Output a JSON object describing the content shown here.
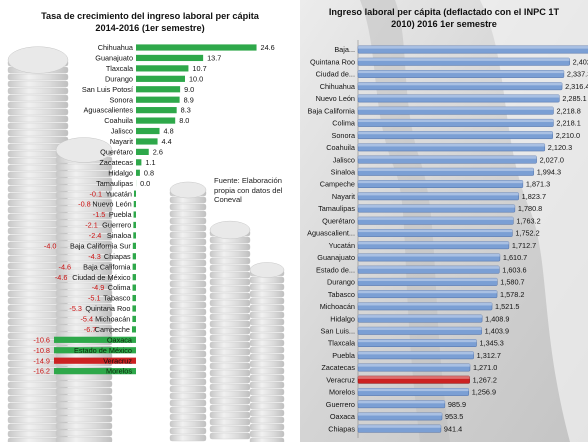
{
  "colors": {
    "growth_positive": "#2ea84a",
    "growth_negative_label": "#cc1111",
    "income_bar": "#7b9fd4",
    "income_highlight": "#cc2222",
    "left_background_coins": "#c8c8c8",
    "right_background": "#dcdcdc"
  },
  "chart_data": [
    {
      "type": "bar",
      "orientation": "horizontal",
      "title": "Tasa de crecimiento del ingreso laboral per cápita 2014-2016 (1er semestre)",
      "title_lines": [
        "Tasa de crecimiento del ingreso laboral per cápita",
        "2014-2016 (1er semestre)"
      ],
      "source_note_lines": [
        "Fuente: Elaboración",
        "propia con datos del",
        "Coneval"
      ],
      "categories": [
        "Chihuahua",
        "Guanajuato",
        "Tlaxcala",
        "Durango",
        "San Luis Potosí",
        "Sonora",
        "Aguascalientes",
        "Coahuila",
        "Jalisco",
        "Nayarit",
        "Querétaro",
        "Zacatecas",
        "Hidalgo",
        "Tamaulipas",
        "Yucatán",
        "Nuevo León",
        "Puebla",
        "Guerrero",
        "Sinaloa",
        "Baja California Sur",
        "Chiapas",
        "Baja California",
        "Ciudad de México",
        "Colima",
        "Tabasco",
        "Quintana Roo",
        "Michoacán",
        "Campeche",
        "Oaxaca",
        "Estado de México",
        "Veracruz",
        "Morelos"
      ],
      "values": [
        24.6,
        13.7,
        10.7,
        10.0,
        9.0,
        8.9,
        8.3,
        8.0,
        4.8,
        4.4,
        2.6,
        1.1,
        0.8,
        0.0,
        -0.1,
        -0.8,
        -1.5,
        -2.1,
        -2.4,
        -4.0,
        -4.3,
        -4.6,
        -4.6,
        -4.9,
        -5.1,
        -5.3,
        -5.4,
        -6.7,
        -10.6,
        -10.8,
        -14.9,
        -16.2
      ],
      "value_labels": [
        "24.6",
        "13.7",
        "10.7",
        "10.0",
        "9.0",
        "8.9",
        "8.3",
        "8.0",
        "4.8",
        "4.4",
        "2.6",
        "1.1",
        "0.8",
        "0.0",
        "-0.1",
        "-0.8",
        "-1.5",
        "-2.1",
        "-2.4",
        "-4.0",
        "-4.3",
        "-4.6",
        "-4.6",
        "-4.9",
        "-5.1",
        "-5.3",
        "-5.4",
        "-6.7",
        "-10.6",
        "-10.8",
        "-14.9",
        "-16.2"
      ],
      "highlight_category": "Veracruz",
      "xlabel": "",
      "ylabel": ""
    },
    {
      "type": "bar",
      "orientation": "horizontal",
      "title": "Ingreso laboral per cápita (deflactado con el INPC 1T 2010) 2016 1er semestre",
      "title_lines": [
        "Ingreso laboral per cápita (deflactado con el INPC 1T",
        "2010) 2016 1er semestre"
      ],
      "categories": [
        "Baja...",
        "Quintana Roo",
        "Ciudad de...",
        "Chihuahua",
        "Nuevo León",
        "Baja California",
        "Colima",
        "Sonora",
        "Coahuila",
        "Jalisco",
        "Sinaloa",
        "Campeche",
        "Nayarit",
        "Tamaulipas",
        "Querétaro",
        "Aguascalient...",
        "Yucatán",
        "Guanajuato",
        "Estado de...",
        "Durango",
        "Tabasco",
        "Michoacán",
        "Hidalgo",
        "San Luis...",
        "Tlaxcala",
        "Puebla",
        "Zacatecas",
        "Veracruz",
        "Morelos",
        "Guerrero",
        "Oaxaca",
        "Chiapas"
      ],
      "values": [
        2784.5,
        2402.6,
        2337.3,
        2316.4,
        2285.1,
        2218.8,
        2218.1,
        2210.0,
        2120.3,
        2027.0,
        1994.3,
        1871.3,
        1823.7,
        1780.8,
        1763.2,
        1752.2,
        1712.7,
        1610.7,
        1603.6,
        1580.7,
        1578.2,
        1521.5,
        1408.9,
        1403.9,
        1345.3,
        1312.7,
        1271.0,
        1267.2,
        1256.9,
        985.9,
        953.5,
        941.4
      ],
      "value_labels": [
        "2,784.5",
        "2,402.6",
        "2,337.3",
        "2,316.4",
        "2,285.1",
        "2,218.8",
        "2,218.1",
        "2,210.0",
        "2,120.3",
        "2,027.0",
        "1,994.3",
        "1,871.3",
        "1,823.7",
        "1,780.8",
        "1,763.2",
        "1,752.2",
        "1,712.7",
        "1,610.7",
        "1,603.6",
        "1,580.7",
        "1,578.2",
        "1,521.5",
        "1,408.9",
        "1,403.9",
        "1,345.3",
        "1,312.7",
        "1,271.0",
        "1,267.2",
        "1,256.9",
        "985.9",
        "953.5",
        "941.4"
      ],
      "highlight_category": "Veracruz",
      "xlabel": "",
      "ylabel": ""
    }
  ]
}
